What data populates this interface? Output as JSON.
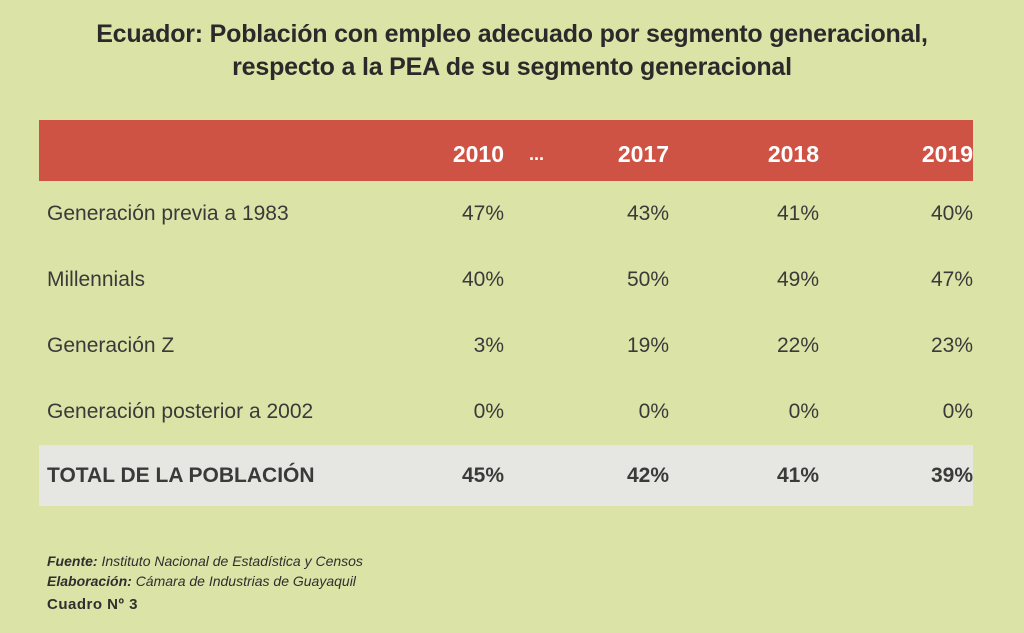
{
  "title_line1": "Ecuador: Población con empleo adecuado por segmento generacional,",
  "title_line2": "respecto a la PEA de su segmento generacional",
  "chart_data": {
    "type": "table",
    "columns": [
      "2010",
      "...",
      "2017",
      "2018",
      "2019"
    ],
    "rows": [
      {
        "label": "Generación previa a 1983",
        "values": [
          "47%",
          "",
          "43%",
          "41%",
          "40%"
        ]
      },
      {
        "label": "Millennials",
        "values": [
          "40%",
          "",
          "50%",
          "49%",
          "47%"
        ]
      },
      {
        "label": "Generación Z",
        "values": [
          "3%",
          "",
          "19%",
          "22%",
          "23%"
        ]
      },
      {
        "label": "Generación posterior a 2002",
        "values": [
          "0%",
          "",
          "0%",
          "0%",
          "0%"
        ]
      }
    ],
    "total": {
      "label": "TOTAL DE LA POBLACIÓN",
      "values": [
        "45%",
        "",
        "42%",
        "41%",
        "39%"
      ]
    }
  },
  "footer": {
    "fuente_label": "Fuente:",
    "fuente_text": "Instituto Nacional de Estadística y Censos",
    "elaboracion_label": "Elaboración:",
    "elaboracion_text": "Cámara de Industrias de Guayaquil",
    "cuadro": "Cuadro Nº 3"
  },
  "colors": {
    "background": "#dbe3a6",
    "header": "#cf5345",
    "total_row": "#e6e6e3"
  }
}
